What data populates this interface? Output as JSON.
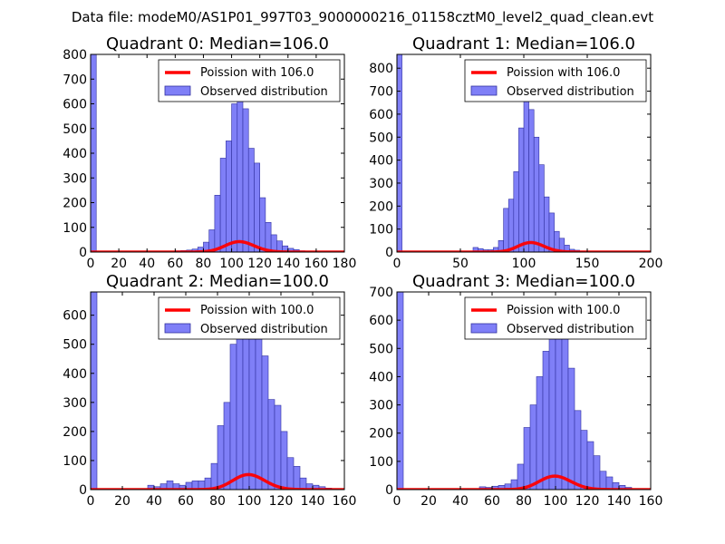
{
  "figure": {
    "suptitle": "Data file: modeM0/AS1P01_997T03_9000000216_01158cztM0_level2_quad_clean.evt"
  },
  "colors": {
    "bar_fill": "#7f7ff7",
    "bar_edge": "#3030a0",
    "poisson": "#ff0000"
  },
  "chart_data": [
    {
      "type": "bar",
      "title": "Quadrant 0: Median=106.0",
      "median": 106.0,
      "xlim": [
        0,
        180
      ],
      "ylim": [
        0,
        800
      ],
      "xticks": [
        0,
        20,
        40,
        60,
        80,
        100,
        120,
        140,
        160,
        180
      ],
      "yticks": [
        0,
        100,
        200,
        300,
        400,
        500,
        600,
        700,
        800
      ],
      "bin_width": 4,
      "legend": [
        "Poission with 106.0",
        "Observed distribution"
      ],
      "bins": [
        [
          0,
          800
        ],
        [
          60,
          5
        ],
        [
          64,
          6
        ],
        [
          68,
          8
        ],
        [
          72,
          12
        ],
        [
          76,
          20
        ],
        [
          80,
          40
        ],
        [
          84,
          90
        ],
        [
          88,
          230
        ],
        [
          92,
          380
        ],
        [
          96,
          450
        ],
        [
          100,
          600
        ],
        [
          104,
          640
        ],
        [
          108,
          580
        ],
        [
          112,
          420
        ],
        [
          116,
          360
        ],
        [
          120,
          220
        ],
        [
          124,
          120
        ],
        [
          128,
          70
        ],
        [
          132,
          45
        ],
        [
          136,
          25
        ],
        [
          140,
          15
        ],
        [
          144,
          10
        ],
        [
          148,
          5
        ]
      ]
    },
    {
      "type": "bar",
      "title": "Quadrant 1: Median=106.0",
      "median": 106.0,
      "xlim": [
        0,
        200
      ],
      "ylim": [
        0,
        860
      ],
      "xticks": [
        0,
        50,
        100,
        150,
        200
      ],
      "yticks": [
        0,
        100,
        200,
        300,
        400,
        500,
        600,
        700,
        800
      ],
      "bin_width": 4,
      "legend": [
        "Poission with 106.0",
        "Observed distribution"
      ],
      "bins": [
        [
          0,
          860
        ],
        [
          60,
          20
        ],
        [
          64,
          15
        ],
        [
          68,
          10
        ],
        [
          72,
          10
        ],
        [
          76,
          20
        ],
        [
          80,
          50
        ],
        [
          84,
          190
        ],
        [
          88,
          230
        ],
        [
          92,
          350
        ],
        [
          96,
          540
        ],
        [
          100,
          730
        ],
        [
          104,
          620
        ],
        [
          108,
          500
        ],
        [
          112,
          380
        ],
        [
          116,
          240
        ],
        [
          120,
          170
        ],
        [
          124,
          90
        ],
        [
          128,
          60
        ],
        [
          132,
          30
        ],
        [
          136,
          12
        ],
        [
          140,
          8
        ],
        [
          144,
          4
        ]
      ]
    },
    {
      "type": "bar",
      "title": "Quadrant 2: Median=100.0",
      "median": 100.0,
      "xlim": [
        0,
        160
      ],
      "ylim": [
        0,
        680
      ],
      "xticks": [
        0,
        20,
        40,
        60,
        80,
        100,
        120,
        140,
        160
      ],
      "yticks": [
        0,
        100,
        200,
        300,
        400,
        500,
        600
      ],
      "bin_width": 4,
      "legend": [
        "Poission with 100.0",
        "Observed distribution"
      ],
      "bins": [
        [
          0,
          680
        ],
        [
          36,
          15
        ],
        [
          40,
          10
        ],
        [
          44,
          20
        ],
        [
          48,
          30
        ],
        [
          52,
          20
        ],
        [
          56,
          15
        ],
        [
          60,
          25
        ],
        [
          64,
          30
        ],
        [
          68,
          30
        ],
        [
          72,
          40
        ],
        [
          76,
          90
        ],
        [
          80,
          220
        ],
        [
          84,
          300
        ],
        [
          88,
          500
        ],
        [
          92,
          530
        ],
        [
          96,
          570
        ],
        [
          100,
          650
        ],
        [
          104,
          550
        ],
        [
          108,
          460
        ],
        [
          112,
          310
        ],
        [
          116,
          290
        ],
        [
          120,
          200
        ],
        [
          124,
          110
        ],
        [
          128,
          80
        ],
        [
          132,
          40
        ],
        [
          136,
          20
        ],
        [
          140,
          15
        ],
        [
          144,
          10
        ],
        [
          148,
          5
        ]
      ]
    },
    {
      "type": "bar",
      "title": "Quadrant 3: Median=100.0",
      "median": 100.0,
      "xlim": [
        0,
        160
      ],
      "ylim": [
        0,
        700
      ],
      "xticks": [
        0,
        20,
        40,
        60,
        80,
        100,
        120,
        140,
        160
      ],
      "yticks": [
        0,
        100,
        200,
        300,
        400,
        500,
        600,
        700
      ],
      "bin_width": 4,
      "legend": [
        "Poission with 100.0",
        "Observed distribution"
      ],
      "bins": [
        [
          0,
          700
        ],
        [
          52,
          10
        ],
        [
          56,
          8
        ],
        [
          60,
          12
        ],
        [
          64,
          15
        ],
        [
          68,
          20
        ],
        [
          72,
          35
        ],
        [
          76,
          90
        ],
        [
          80,
          220
        ],
        [
          84,
          300
        ],
        [
          88,
          400
        ],
        [
          92,
          490
        ],
        [
          96,
          620
        ],
        [
          100,
          650
        ],
        [
          104,
          550
        ],
        [
          108,
          430
        ],
        [
          112,
          280
        ],
        [
          116,
          210
        ],
        [
          120,
          170
        ],
        [
          124,
          120
        ],
        [
          128,
          65
        ],
        [
          132,
          45
        ],
        [
          136,
          25
        ],
        [
          140,
          15
        ],
        [
          144,
          8
        ]
      ]
    }
  ]
}
